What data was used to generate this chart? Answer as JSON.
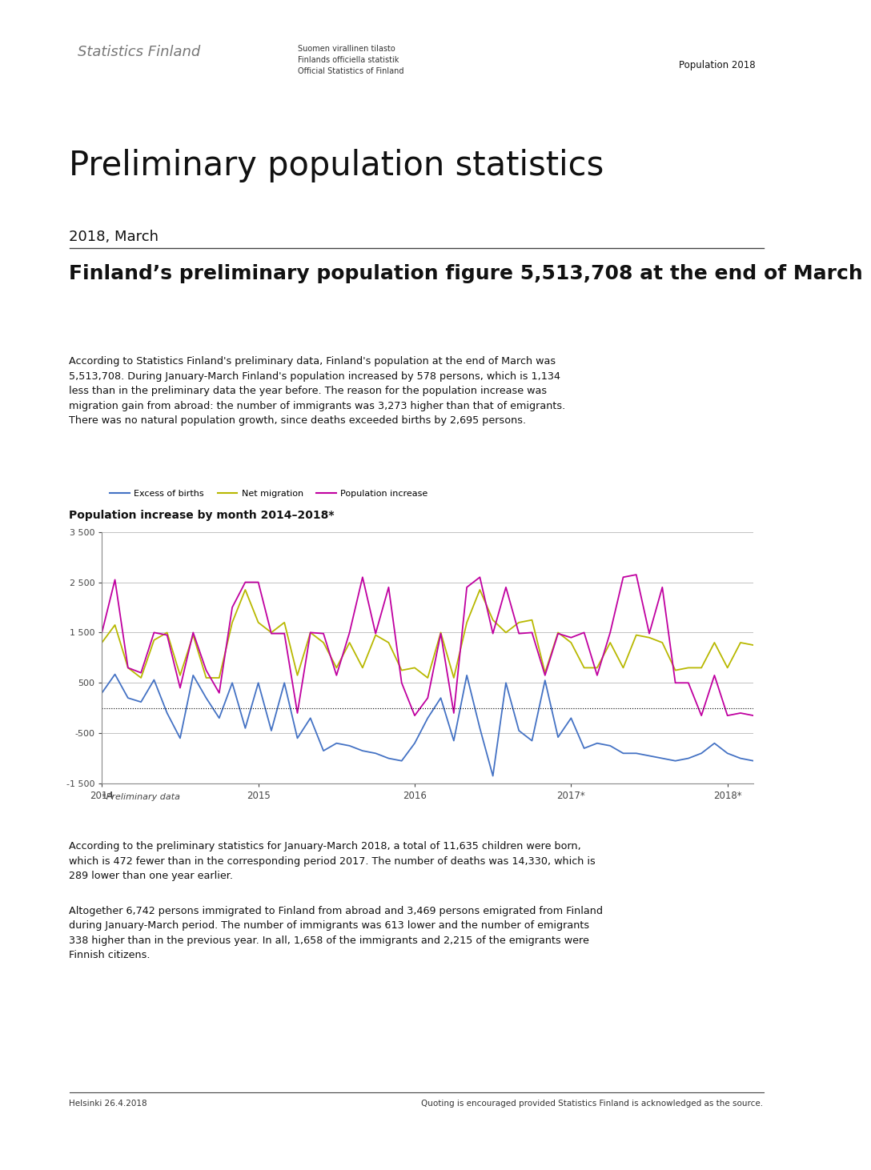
{
  "page_title": "Preliminary population statistics",
  "subtitle": "2018, March",
  "header_right": "Population 2018",
  "section_title": "Finland’s preliminary population figure 5,513,708 at the end of March",
  "body_text1": "According to Statistics Finland's preliminary data, Finland's population at the end of March was\n5,513,708. During January-March Finland's population increased by 578 persons, which is 1,134\nless than in the preliminary data the year before. The reason for the population increase was\nmigration gain from abroad: the number of immigrants was 3,273 higher than that of emigrants.\nThere was no natural population growth, since deaths exceeded births by 2,695 persons.",
  "chart_title": "Population increase by month 2014–2018*",
  "chart_note": "*Preliminary data",
  "legend_labels": [
    "Excess of births",
    "Net migration",
    "Population increase"
  ],
  "legend_colors": [
    "#4472c4",
    "#b8b800",
    "#c000a0"
  ],
  "body_text2": "According to the preliminary statistics for January-March 2018, a total of 11,635 children were born,\nwhich is 472 fewer than in the corresponding period 2017. The number of deaths was 14,330, which is\n289 lower than one year earlier.",
  "body_text3": "Altogether 6,742 persons immigrated to Finland from abroad and 3,469 persons emigrated from Finland\nduring January-March period. The number of immigrants was 613 lower and the number of emigrants\n338 higher than in the previous year. In all, 1,658 of the immigrants and 2,215 of the emigrants were\nFinnish citizens.",
  "footer_left": "Helsinki 26.4.2018",
  "footer_right": "Quoting is encouraged provided Statistics Finland is acknowledged as the source.",
  "excess_of_births": [
    300,
    670,
    200,
    120,
    560,
    -100,
    -600,
    650,
    200,
    -200,
    500,
    -400,
    500,
    -450,
    500,
    -600,
    -200,
    -850,
    -700,
    -750,
    -850,
    -900,
    -1000,
    -1050,
    -700,
    -200,
    200,
    -650,
    650,
    -400,
    -1350,
    500,
    -450,
    -650,
    550,
    -580,
    -200,
    -800,
    -700,
    -750,
    -900,
    -900,
    -950,
    -1000,
    -1050,
    -1000,
    -900,
    -700,
    -900,
    -1000,
    -1050
  ],
  "net_migration": [
    1300,
    1650,
    800,
    600,
    1350,
    1500,
    650,
    1450,
    600,
    600,
    1700,
    2350,
    1700,
    1500,
    1700,
    650,
    1500,
    1300,
    800,
    1300,
    800,
    1450,
    1300,
    750,
    800,
    600,
    1500,
    600,
    1700,
    2350,
    1750,
    1500,
    1700,
    1750,
    700,
    1500,
    1300,
    800,
    800,
    1300,
    800,
    1450,
    1400,
    1300,
    750,
    800,
    800,
    1300,
    800,
    1300,
    1250
  ],
  "population_increase": [
    1500,
    2550,
    800,
    700,
    1500,
    1450,
    400,
    1500,
    750,
    300,
    2000,
    2500,
    2500,
    1480,
    1480,
    -100,
    1500,
    1480,
    650,
    1500,
    2600,
    1480,
    2400,
    500,
    -150,
    200,
    1480,
    -100,
    2400,
    2600,
    1480,
    2400,
    1480,
    1500,
    650,
    1480,
    1400,
    1500,
    650,
    1500,
    2600,
    2650,
    1480,
    2400,
    500,
    500,
    -150,
    650,
    -150,
    -100,
    -150
  ],
  "ylim": [
    -1500,
    3500
  ],
  "yticks": [
    -1500,
    -500,
    500,
    1500,
    2500,
    3500
  ],
  "ytick_labels": [
    "-1 500",
    "-500",
    "500",
    "1 500",
    "2 500",
    "3 500"
  ],
  "xtick_positions": [
    0,
    12,
    24,
    36,
    48
  ],
  "xtick_labels": [
    "2014",
    "2015",
    "2016",
    "2017*",
    "2018*"
  ],
  "n_months": 51
}
